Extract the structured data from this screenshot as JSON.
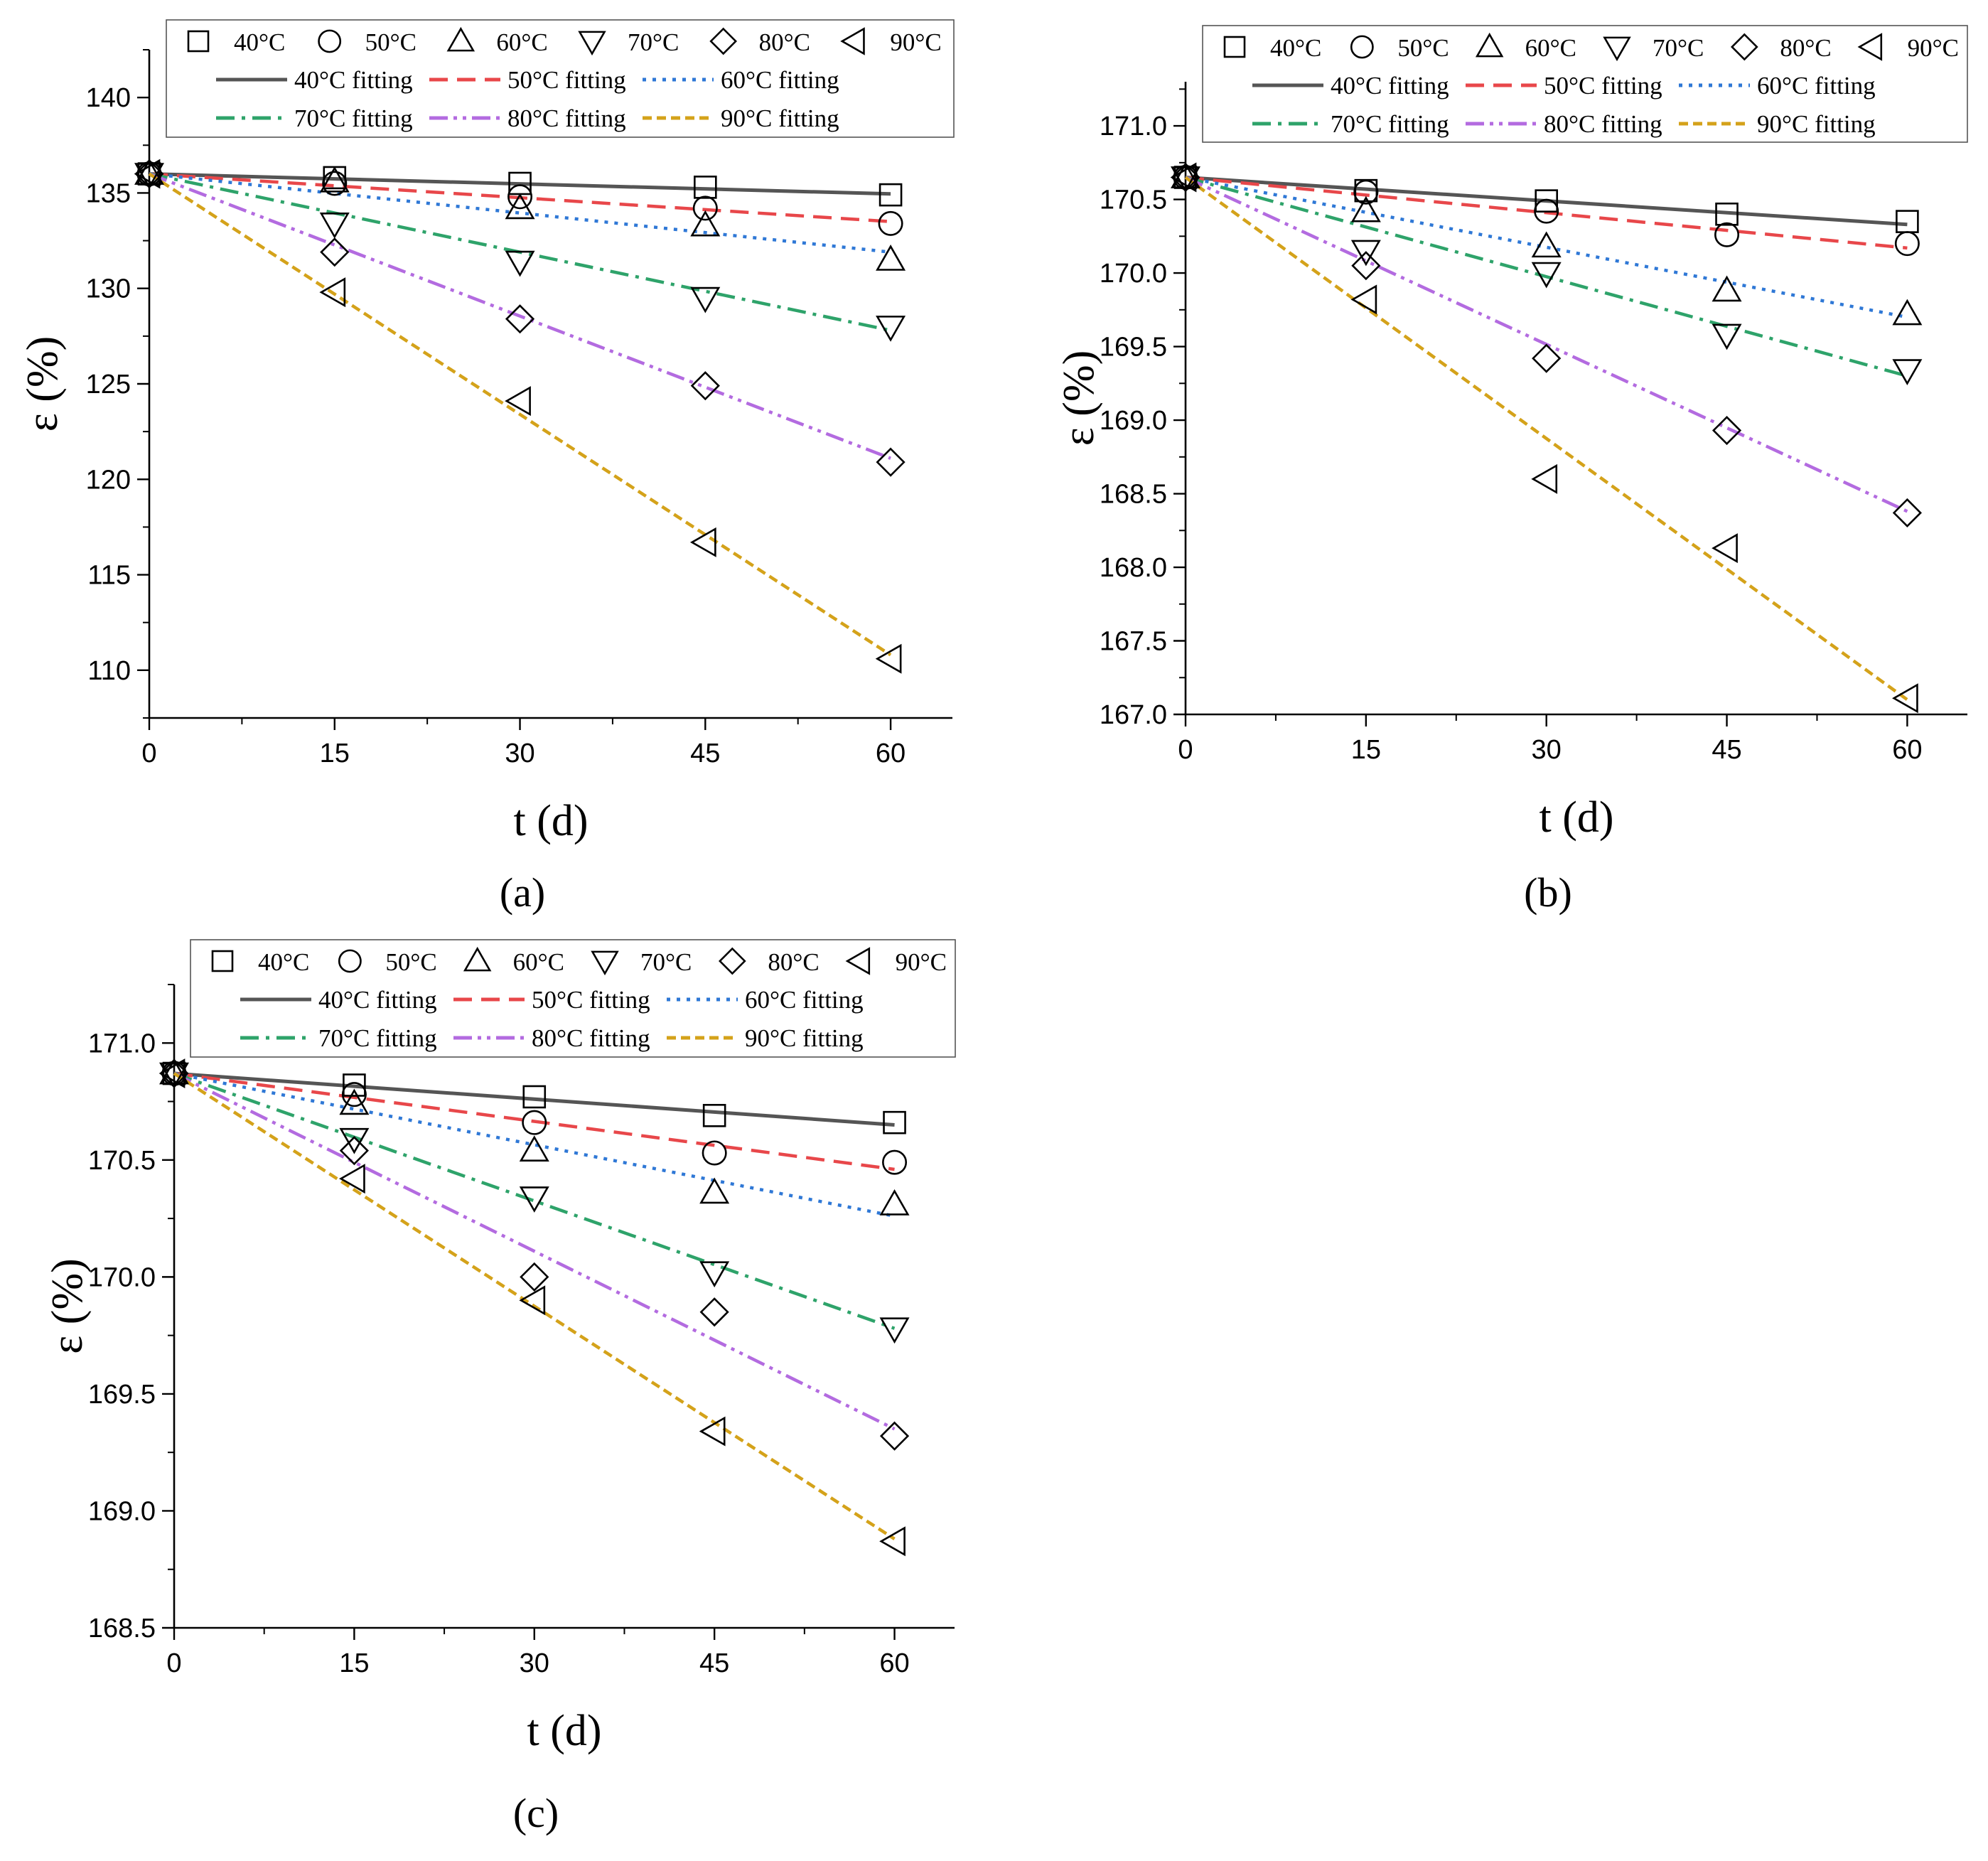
{
  "figure": {
    "background": "#ffffff"
  },
  "series_style": [
    {
      "temp": "40°C",
      "marker": "square",
      "fit_color": "#555555",
      "dash": "solid"
    },
    {
      "temp": "50°C",
      "marker": "circle",
      "fit_color": "#e8474a",
      "dash": "dash"
    },
    {
      "temp": "60°C",
      "marker": "triangle-up",
      "fit_color": "#2f78d6",
      "dash": "dot"
    },
    {
      "temp": "70°C",
      "marker": "triangle-down",
      "fit_color": "#2ea36a",
      "dash": "dashdot"
    },
    {
      "temp": "80°C",
      "marker": "diamond",
      "fit_color": "#b36be0",
      "dash": "dashdotdot"
    },
    {
      "temp": "90°C",
      "marker": "triangle-left",
      "fit_color": "#d4a21a",
      "dash": "shortdash"
    }
  ],
  "chart_data": [
    {
      "panel": "(a)",
      "type": "scatter",
      "xlabel": "t (d)",
      "ylabel": "ε (%)",
      "xlim": [
        0,
        65
      ],
      "ylim": [
        107.5,
        142.5
      ],
      "xticks": [
        0,
        15,
        30,
        45,
        60
      ],
      "yticks": [
        110,
        115,
        120,
        125,
        130,
        135,
        140
      ],
      "ytick_labels": [
        "110",
        "115",
        "120",
        "125",
        "130",
        "135",
        "140"
      ],
      "legend_markers": [
        "40°C",
        "50°C",
        "60°C",
        "70°C",
        "80°C",
        "90°C"
      ],
      "legend_fits": [
        "40°C fitting",
        "50°C fitting",
        "60°C fitting",
        "70°C fitting",
        "80°C fitting",
        "90°C fitting"
      ],
      "x": [
        0,
        15,
        30,
        45,
        60
      ],
      "series": [
        {
          "name": "40°C",
          "values": [
            136.0,
            135.8,
            135.5,
            135.3,
            134.9
          ],
          "fit": [
            136.0,
            134.95
          ]
        },
        {
          "name": "50°C",
          "values": [
            136.0,
            135.5,
            134.8,
            134.2,
            133.4
          ],
          "fit": [
            136.0,
            133.5
          ]
        },
        {
          "name": "60°C",
          "values": [
            136.0,
            135.6,
            134.2,
            133.3,
            131.5
          ],
          "fit": [
            136.0,
            131.9
          ]
        },
        {
          "name": "70°C",
          "values": [
            136.0,
            133.4,
            131.4,
            129.5,
            128.0
          ],
          "fit": [
            136.0,
            127.8
          ]
        },
        {
          "name": "80°C",
          "values": [
            136.0,
            131.9,
            128.4,
            124.9,
            120.9
          ],
          "fit": [
            136.0,
            121.1
          ]
        },
        {
          "name": "90°C",
          "values": [
            136.0,
            129.8,
            124.1,
            116.7,
            110.6
          ],
          "fit": [
            136.0,
            110.8
          ]
        }
      ]
    },
    {
      "panel": "(b)",
      "type": "scatter",
      "xlabel": "t (d)",
      "ylabel": "ε (%)",
      "xlim": [
        0,
        65
      ],
      "ylim": [
        167.0,
        171.3
      ],
      "xticks": [
        0,
        15,
        30,
        45,
        60
      ],
      "yticks": [
        167.0,
        167.5,
        168.0,
        168.5,
        169.0,
        169.5,
        170.0,
        170.5,
        171.0
      ],
      "ytick_labels": [
        "167.0",
        "167.5",
        "168.0",
        "168.5",
        "169.0",
        "169.5",
        "170.0",
        "170.5",
        "171.0"
      ],
      "legend_markers": [
        "40°C",
        "50°C",
        "60°C",
        "70°C",
        "80°C",
        "90°C"
      ],
      "legend_fits": [
        "40°C fitting",
        "50°C fitting",
        "60°C fitting",
        "70°C fitting",
        "80°C fitting",
        "90°C fitting"
      ],
      "x": [
        0,
        15,
        30,
        45,
        60
      ],
      "series": [
        {
          "name": "40°C",
          "values": [
            170.65,
            170.56,
            170.49,
            170.4,
            170.35
          ],
          "fit": [
            170.65,
            170.33
          ]
        },
        {
          "name": "50°C",
          "values": [
            170.65,
            170.55,
            170.42,
            170.26,
            170.2
          ],
          "fit": [
            170.65,
            170.17
          ]
        },
        {
          "name": "60°C",
          "values": [
            170.65,
            170.42,
            170.18,
            169.88,
            169.72
          ],
          "fit": [
            170.65,
            169.7
          ]
        },
        {
          "name": "70°C",
          "values": [
            170.65,
            170.15,
            170.0,
            169.58,
            169.34
          ],
          "fit": [
            170.65,
            169.3
          ]
        },
        {
          "name": "80°C",
          "values": [
            170.65,
            170.05,
            169.42,
            168.93,
            168.37
          ],
          "fit": [
            170.65,
            168.38
          ]
        },
        {
          "name": "90°C",
          "values": [
            170.65,
            169.82,
            168.6,
            168.13,
            167.11
          ],
          "fit": [
            170.65,
            167.1
          ]
        }
      ]
    },
    {
      "panel": "(c)",
      "type": "scatter",
      "xlabel": "t (d)",
      "ylabel": "ε (%)",
      "xlim": [
        0,
        65
      ],
      "ylim": [
        168.5,
        171.25
      ],
      "xticks": [
        0,
        15,
        30,
        45,
        60
      ],
      "yticks": [
        168.5,
        169.0,
        169.5,
        170.0,
        170.5,
        171.0
      ],
      "ytick_labels": [
        "168.5",
        "169.0",
        "169.5",
        "170.0",
        "170.5",
        "171.0"
      ],
      "legend_markers": [
        "40°C",
        "50°C",
        "60°C",
        "70°C",
        "80°C",
        "90°C"
      ],
      "legend_fits": [
        "40°C fitting",
        "50°C fitting",
        "60°C fitting",
        "70°C fitting",
        "80°C fitting",
        "90°C fitting"
      ],
      "x": [
        0,
        15,
        30,
        45,
        60
      ],
      "series": [
        {
          "name": "40°C",
          "values": [
            170.87,
            170.82,
            170.77,
            170.69,
            170.66
          ],
          "fit": [
            170.87,
            170.65
          ]
        },
        {
          "name": "50°C",
          "values": [
            170.87,
            170.78,
            170.66,
            170.53,
            170.49
          ],
          "fit": [
            170.87,
            170.46
          ]
        },
        {
          "name": "60°C",
          "values": [
            170.87,
            170.74,
            170.54,
            170.36,
            170.31
          ],
          "fit": [
            170.87,
            170.26
          ]
        },
        {
          "name": "70°C",
          "values": [
            170.87,
            170.59,
            170.34,
            170.02,
            169.78
          ],
          "fit": [
            170.87,
            169.78
          ]
        },
        {
          "name": "80°C",
          "values": [
            170.87,
            170.54,
            170.0,
            169.85,
            169.32
          ],
          "fit": [
            170.87,
            169.35
          ]
        },
        {
          "name": "90°C",
          "values": [
            170.87,
            170.42,
            169.9,
            169.34,
            168.87
          ],
          "fit": [
            170.87,
            168.88
          ]
        }
      ]
    }
  ]
}
